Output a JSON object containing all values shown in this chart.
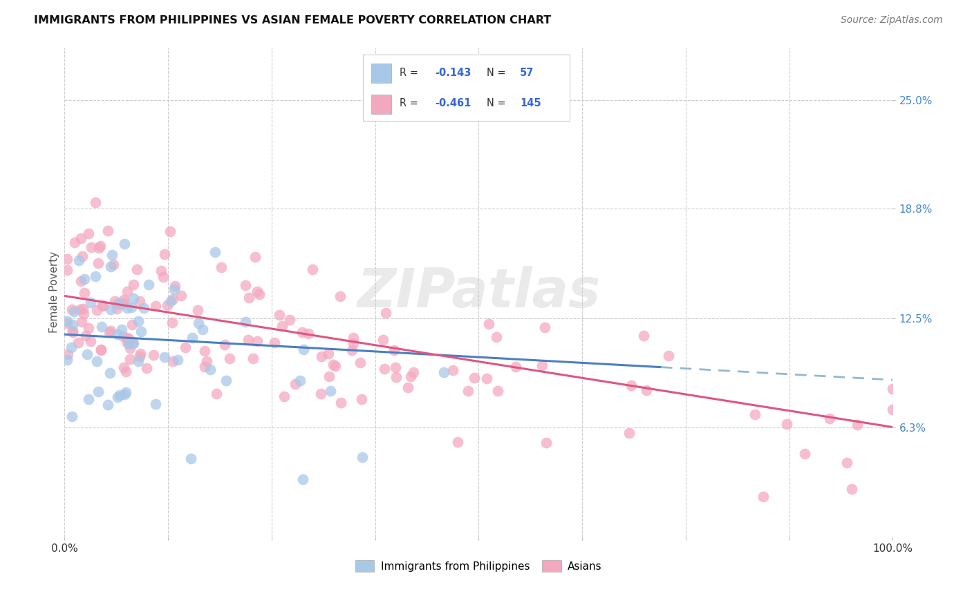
{
  "title": "IMMIGRANTS FROM PHILIPPINES VS ASIAN FEMALE POVERTY CORRELATION CHART",
  "source": "Source: ZipAtlas.com",
  "ylabel": "Female Poverty",
  "ytick_values": [
    6.3,
    12.5,
    18.8,
    25.0
  ],
  "xlim": [
    0,
    100
  ],
  "ylim": [
    0,
    28
  ],
  "color_blue": "#a8c8e8",
  "color_pink": "#f4a8c0",
  "line_blue_color": "#4a7fc1",
  "line_pink_color": "#e05580",
  "line_blue_dashed_color": "#90b8d8",
  "watermark": "ZIPatlas",
  "blue_intercept": 11.6,
  "blue_slope": -0.026,
  "blue_solid_end": 72,
  "pink_intercept": 13.8,
  "pink_slope": -0.075,
  "title_fontsize": 11.5,
  "source_fontsize": 10,
  "tick_fontsize": 11,
  "ylabel_fontsize": 11
}
